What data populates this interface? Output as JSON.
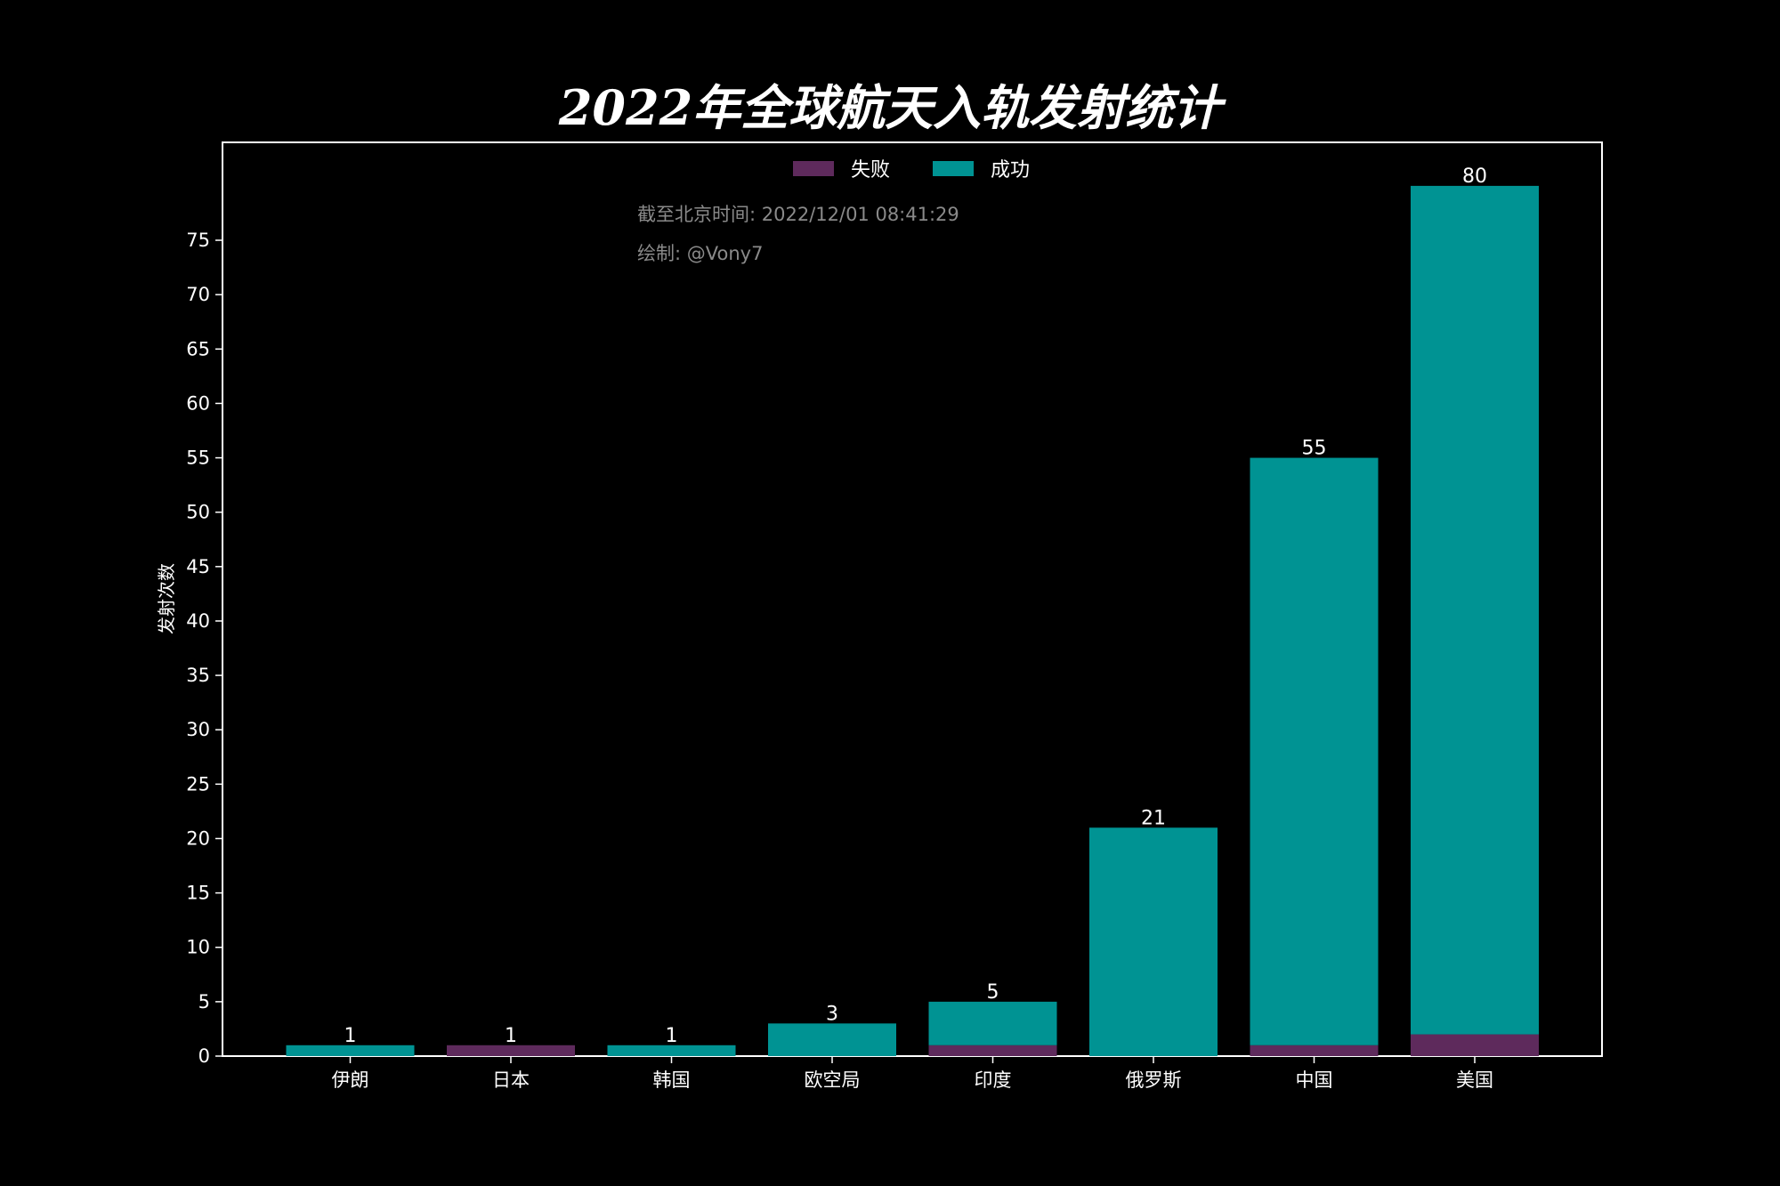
{
  "chart_data": {
    "type": "bar",
    "stacked": true,
    "title": "2022年全球航天入轨发射统计",
    "ylabel": "发射次数",
    "xlabel": "",
    "categories": [
      "伊朗",
      "日本",
      "韩国",
      "欧空局",
      "印度",
      "俄罗斯",
      "中国",
      "美国"
    ],
    "series": [
      {
        "name": "失败",
        "color": "#5e2a5c",
        "values": [
          0,
          1,
          0,
          0,
          1,
          0,
          1,
          2
        ]
      },
      {
        "name": "成功",
        "color": "#009393",
        "values": [
          1,
          0,
          1,
          3,
          4,
          21,
          54,
          78
        ]
      }
    ],
    "totals": [
      1,
      1,
      1,
      3,
      5,
      21,
      55,
      80
    ],
    "total_labels": [
      "1",
      "1",
      "1",
      "3",
      "5",
      "21",
      "55",
      "80"
    ],
    "ylim": [
      0,
      84
    ],
    "yticks": [
      0,
      5,
      10,
      15,
      20,
      25,
      30,
      35,
      40,
      45,
      50,
      55,
      60,
      65,
      70,
      75
    ],
    "ytick_labels": [
      "0",
      "5",
      "10",
      "15",
      "20",
      "25",
      "30",
      "35",
      "40",
      "45",
      "50",
      "55",
      "60",
      "65",
      "70",
      "75"
    ],
    "legend_position": "top-center",
    "grid": false,
    "annotations": [
      "截至北京时间: 2022/12/01 08:41:29",
      "绘制: @Vony7"
    ]
  },
  "colors": {
    "background": "#000000",
    "axes": "#ffffff",
    "note": "#8a8a8a"
  }
}
